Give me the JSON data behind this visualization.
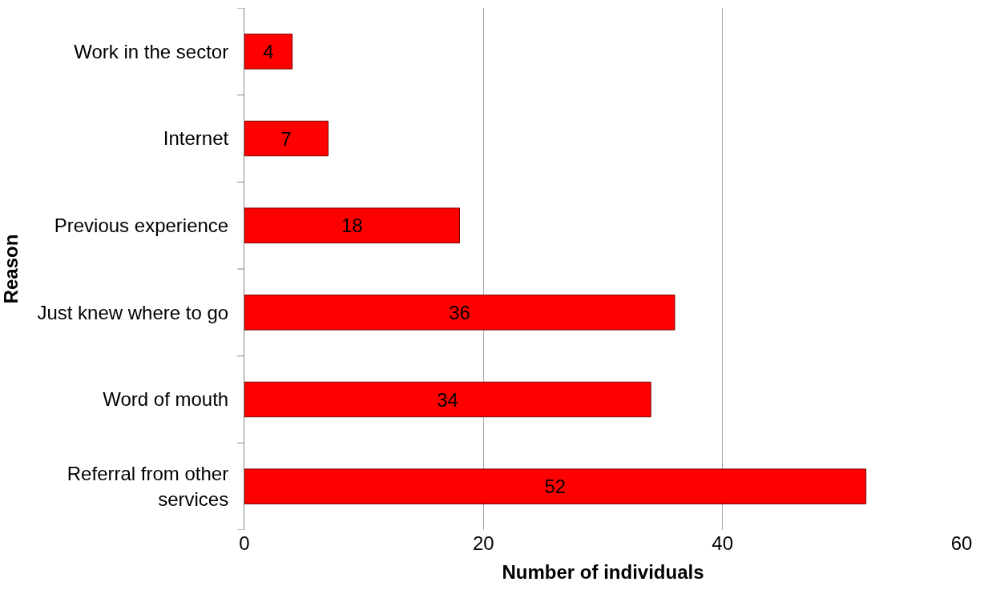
{
  "chart_data": {
    "type": "bar",
    "orientation": "horizontal",
    "categories": [
      "Work in the sector",
      "Internet",
      "Previous experience",
      "Just knew where to go",
      "Word of mouth",
      "Referral from other services"
    ],
    "values": [
      4,
      7,
      18,
      36,
      34,
      52
    ],
    "color": "#ff0000",
    "xlim": [
      0,
      60
    ],
    "xticks": [
      0,
      20,
      40,
      60
    ],
    "xlabel": "Number of individuals",
    "ylabel": "Reason",
    "grid": "x",
    "data_labels": true
  }
}
